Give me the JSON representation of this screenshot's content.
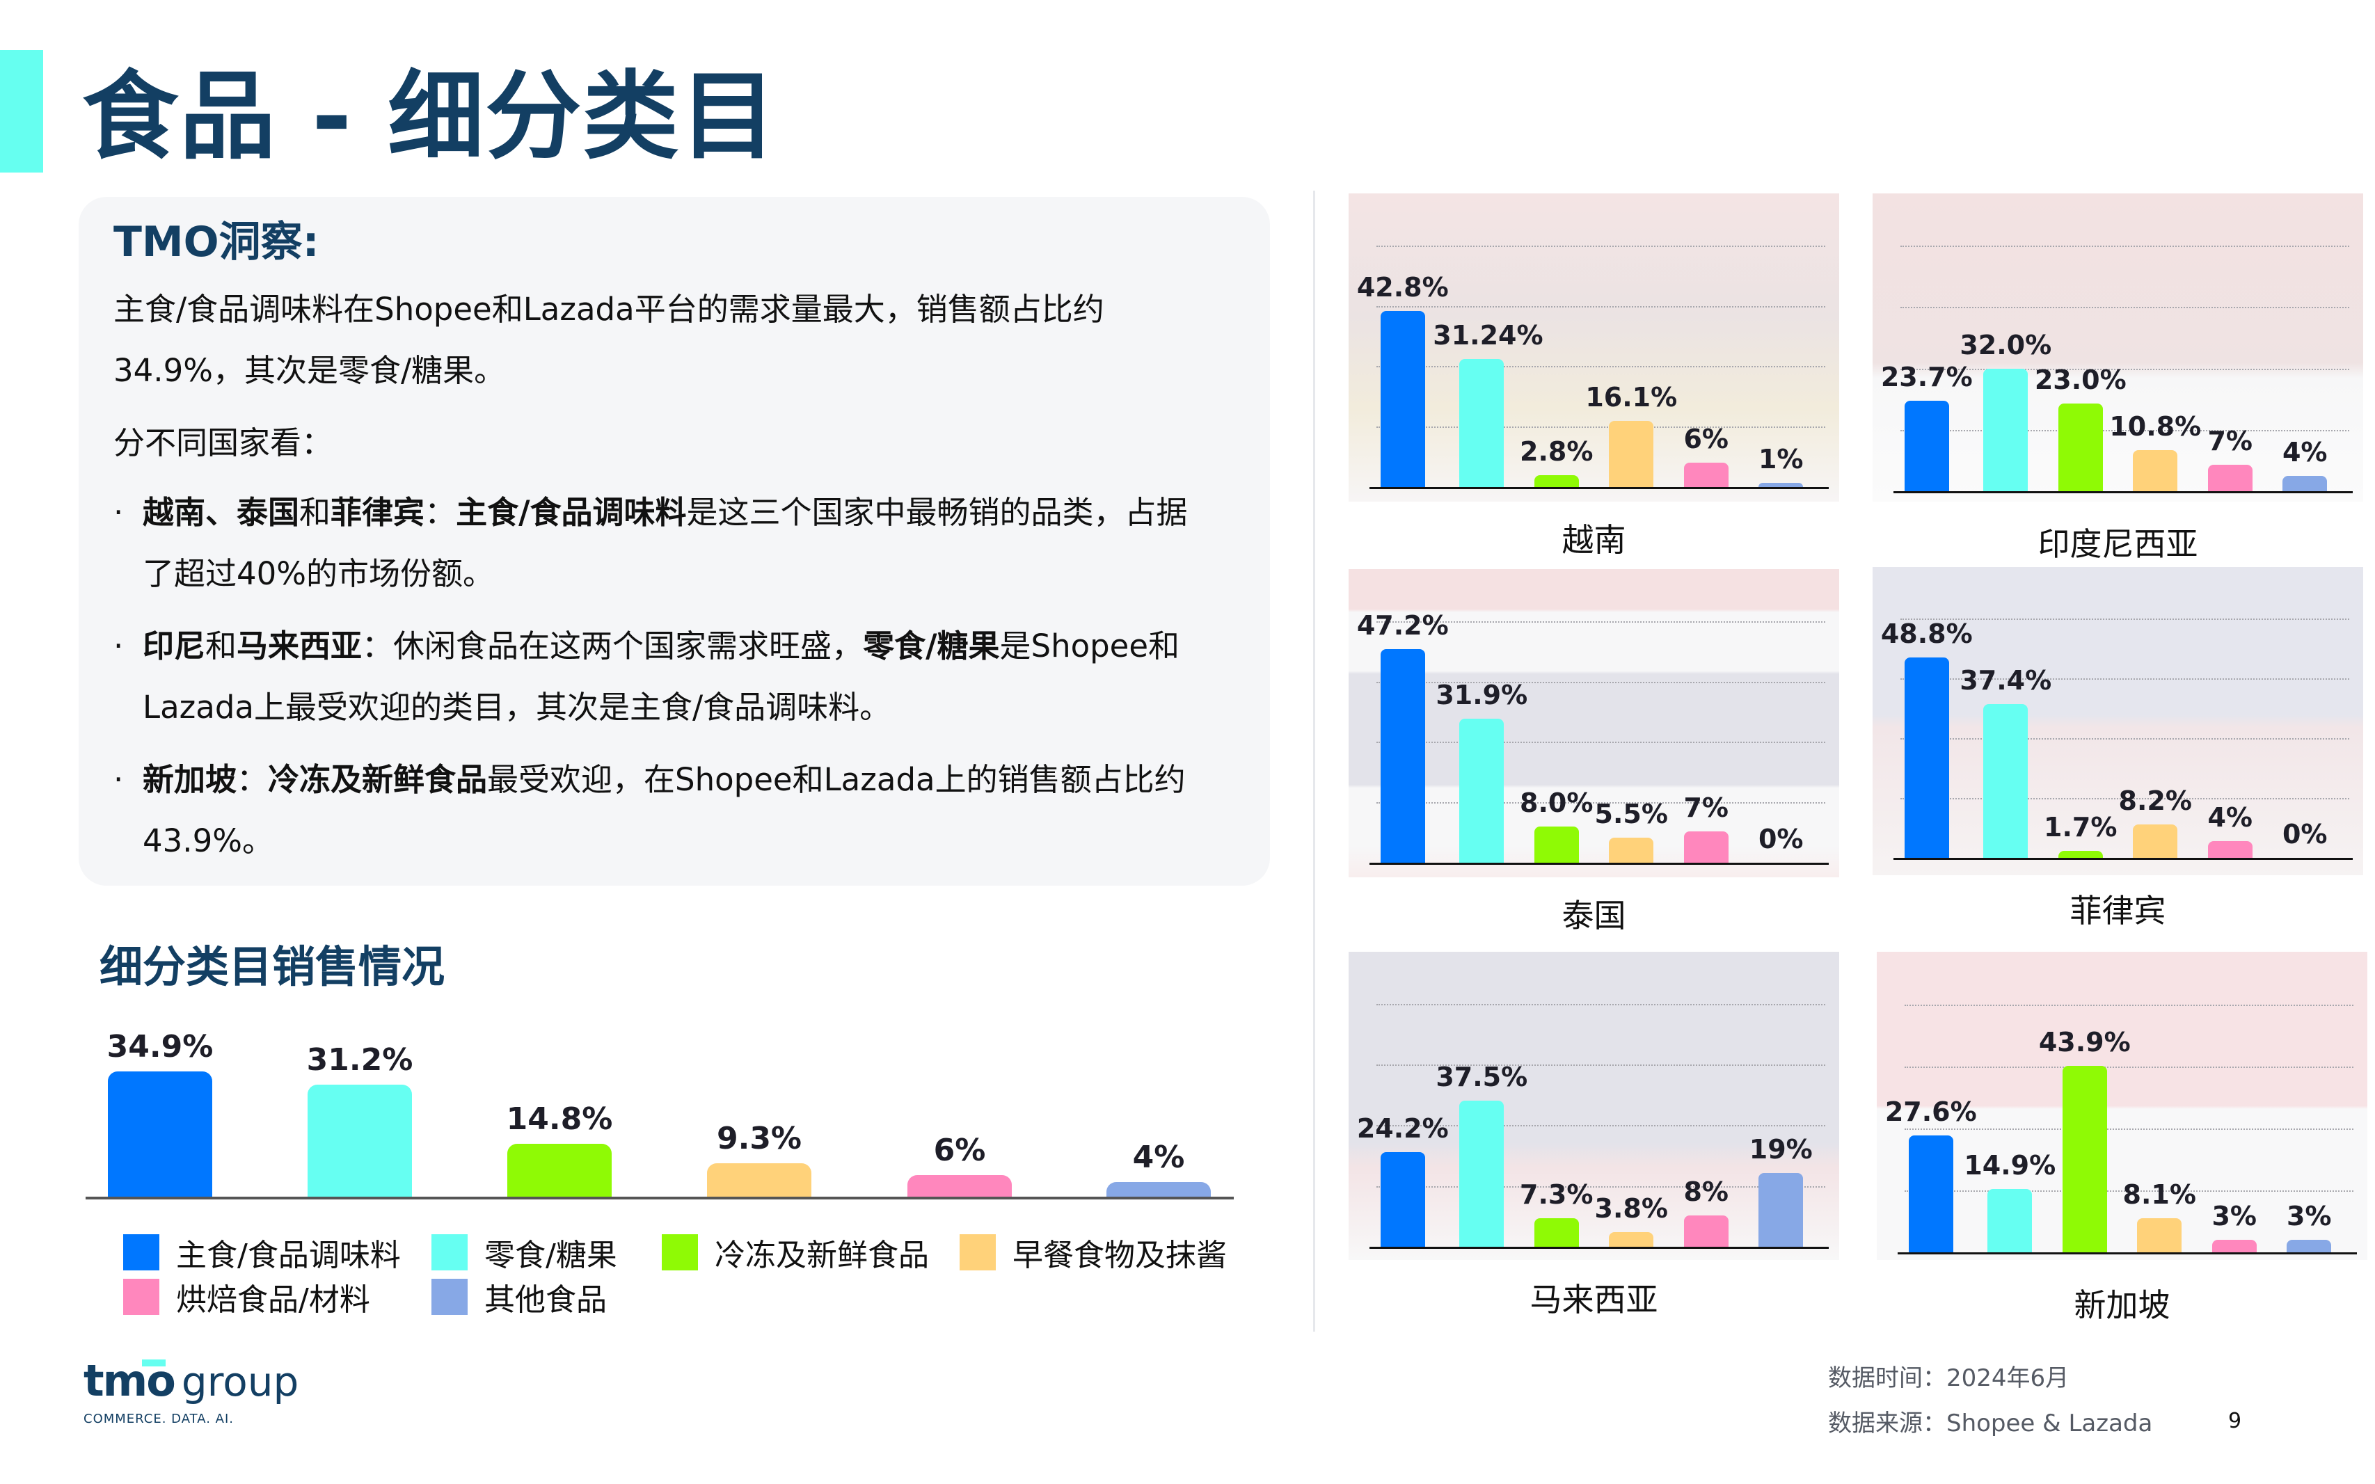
{
  "page": {
    "title": "食品 - 细分类目",
    "page_number": "9"
  },
  "insight": {
    "title": "TMO洞察:",
    "intro_line1": "主食/食品调味料在Shopee和Lazada平台的需求量最大，销售额占比约",
    "intro_line2": "34.9%，其次是零食/糖果。",
    "by_country": "分不同国家看：",
    "bullets": [
      {
        "dot": "·",
        "line1_bold1": "越南、泰国",
        "line1_norm1": "和",
        "line1_bold2": "菲律宾",
        "line1_norm2": "：",
        "line1_bold3": "主食/食品调味料",
        "line1_norm3": "是这三个国家中最畅销的品类，占据",
        "line2": "了超过40%的市场份额。"
      },
      {
        "dot": "·",
        "line1_bold1": "印尼",
        "line1_norm1": "和",
        "line1_bold2": "马来西亚",
        "line1_norm2": "：休闲食品在这两个国家需求旺盛，",
        "line1_bold3": "零食/糖果",
        "line1_norm3": "是Shopee和",
        "line2": "Lazada上最受欢迎的类目，其次是主食/食品调味料。"
      },
      {
        "dot": "·",
        "line1_bold1": "新加坡",
        "line1_norm1": "：",
        "line1_bold2": "冷冻及新鲜食品",
        "line1_norm2": "最受欢迎，在Shopee和Lazada上的销售额占比约",
        "line2": "43.9%。"
      }
    ]
  },
  "section": {
    "subtitle": "细分类目销售情况"
  },
  "legend": [
    {
      "label": "主食/食品调味料",
      "color": "#0077ff"
    },
    {
      "label": "零食/糖果",
      "color": "#66fff2"
    },
    {
      "label": "冷冻及新鲜食品",
      "color": "#8ffa05"
    },
    {
      "label": "早餐食物及抹酱",
      "color": "#ffd27a"
    },
    {
      "label": "烘焙食品/材料",
      "color": "#ff87bd"
    },
    {
      "label": "其他食品",
      "color": "#87a8e6"
    }
  ],
  "chart_data": [
    {
      "type": "bar",
      "title": "细分类目销售情况",
      "categories": [
        "主食/食品调味料",
        "零食/糖果",
        "冷冻及新鲜食品",
        "早餐食物及抹酱",
        "烘焙食品/材料",
        "其他食品"
      ],
      "values": [
        34.9,
        31.2,
        14.8,
        9.3,
        6,
        4
      ],
      "labels": [
        "34.9%",
        "31.2%",
        "14.8%",
        "9.3%",
        "6%",
        "4%"
      ],
      "colors": [
        "#0077ff",
        "#66fff2",
        "#8ffa05",
        "#ffd27a",
        "#ff87bd",
        "#87a8e6"
      ],
      "xlabel": "",
      "ylabel": "",
      "grid": false,
      "legend_position": "bottom"
    },
    {
      "type": "bar",
      "title": "越南",
      "categories": [
        "主食/食品调味料",
        "零食/糖果",
        "冷冻及新鲜食品",
        "早餐食物及抹酱",
        "烘焙食品/材料",
        "其他食品"
      ],
      "values": [
        42.8,
        31.24,
        2.8,
        16.1,
        6,
        1
      ],
      "labels": [
        "42.8%",
        "31.24%",
        "2.8%",
        "16.1%",
        "6%",
        "1%"
      ],
      "grid": true
    },
    {
      "type": "bar",
      "title": "印度尼西亚",
      "categories": [
        "主食/食品调味料",
        "零食/糖果",
        "冷冻及新鲜食品",
        "早餐食物及抹酱",
        "烘焙食品/材料",
        "其他食品"
      ],
      "values": [
        23.7,
        32.0,
        23.0,
        10.8,
        7,
        4
      ],
      "labels": [
        "23.7%",
        "32.0%",
        "23.0%",
        "10.8%",
        "7%",
        "4%"
      ],
      "grid": true
    },
    {
      "type": "bar",
      "title": "泰国",
      "categories": [
        "主食/食品调味料",
        "零食/糖果",
        "冷冻及新鲜食品",
        "早餐食物及抹酱",
        "烘焙食品/材料",
        "其他食品"
      ],
      "values": [
        47.2,
        31.9,
        8.0,
        5.5,
        7,
        0
      ],
      "labels": [
        "47.2%",
        "31.9%",
        "8.0%",
        "5.5%",
        "7%",
        "0%"
      ],
      "grid": true
    },
    {
      "type": "bar",
      "title": "菲律宾",
      "categories": [
        "主食/食品调味料",
        "零食/糖果",
        "冷冻及新鲜食品",
        "早餐食物及抹酱",
        "烘焙食品/材料",
        "其他食品"
      ],
      "values": [
        48.8,
        37.4,
        1.7,
        8.2,
        4,
        0
      ],
      "labels": [
        "48.8%",
        "37.4%",
        "1.7%",
        "8.2%",
        "4%",
        "0%"
      ],
      "grid": true
    },
    {
      "type": "bar",
      "title": "马来西亚",
      "categories": [
        "主食/食品调味料",
        "零食/糖果",
        "冷冻及新鲜食品",
        "早餐食物及抹酱",
        "烘焙食品/材料",
        "其他食品"
      ],
      "values": [
        24.2,
        37.5,
        7.3,
        3.8,
        8,
        19
      ],
      "labels": [
        "24.2%",
        "37.5%",
        "7.3%",
        "3.8%",
        "8%",
        "19%"
      ],
      "grid": true
    },
    {
      "type": "bar",
      "title": "新加坡",
      "categories": [
        "主食/食品调味料",
        "零食/糖果",
        "冷冻及新鲜食品",
        "早餐食物及抹酱",
        "烘焙食品/材料",
        "其他食品"
      ],
      "values": [
        27.6,
        14.9,
        43.9,
        8.1,
        3,
        3
      ],
      "labels": [
        "27.6%",
        "14.9%",
        "43.9%",
        "8.1%",
        "3%",
        "3%"
      ],
      "grid": true
    }
  ],
  "countries": [
    {
      "name": "越南",
      "bg": "linear-gradient(180deg,#f4e4e4 0%,#ebe3e3 40%,#f2ecdc 70%,#f7f5f5 100%)"
    },
    {
      "name": "印度尼西亚",
      "bg": "linear-gradient(180deg,#f3e2e2 0%,#efe3e3 55%,#f7f7f8 60%,#fbfbfb 100%)"
    },
    {
      "name": "泰国",
      "bg": "linear-gradient(180deg,#f5e1e2 0%,#f5e1e2 13%,#f7f7f8 14%,#f7f7f8 33%,#e3e3ea 34%,#e3e3ea 70%,#f7f7f8 71%,#f7f7f8 90%,#f8eeee 100%)"
    },
    {
      "name": "菲律宾",
      "bg": "linear-gradient(180deg,#e5e6ee 0%,#e5e6ee 48%,#f2e6e8 52%,#f6f3f3 100%)"
    },
    {
      "name": "马来西亚",
      "bg": "linear-gradient(180deg,#e3e3ea 0%,#e3e3ea 62%,#f3e4e6 70%,#f8f8f8 100%)"
    },
    {
      "name": "新加坡",
      "bg": "linear-gradient(180deg,#f7e3e5 0%,#f7e3e5 50%,#f8f8f9 51%,#f8f8f9 100%)"
    }
  ],
  "footer": {
    "data_time": "数据时间：2024年6月",
    "data_source": "数据来源：Shopee & Lazada"
  },
  "logo": {
    "mark": "tmo",
    "word": "group",
    "tagline": "COMMERCE. DATA. AI."
  }
}
